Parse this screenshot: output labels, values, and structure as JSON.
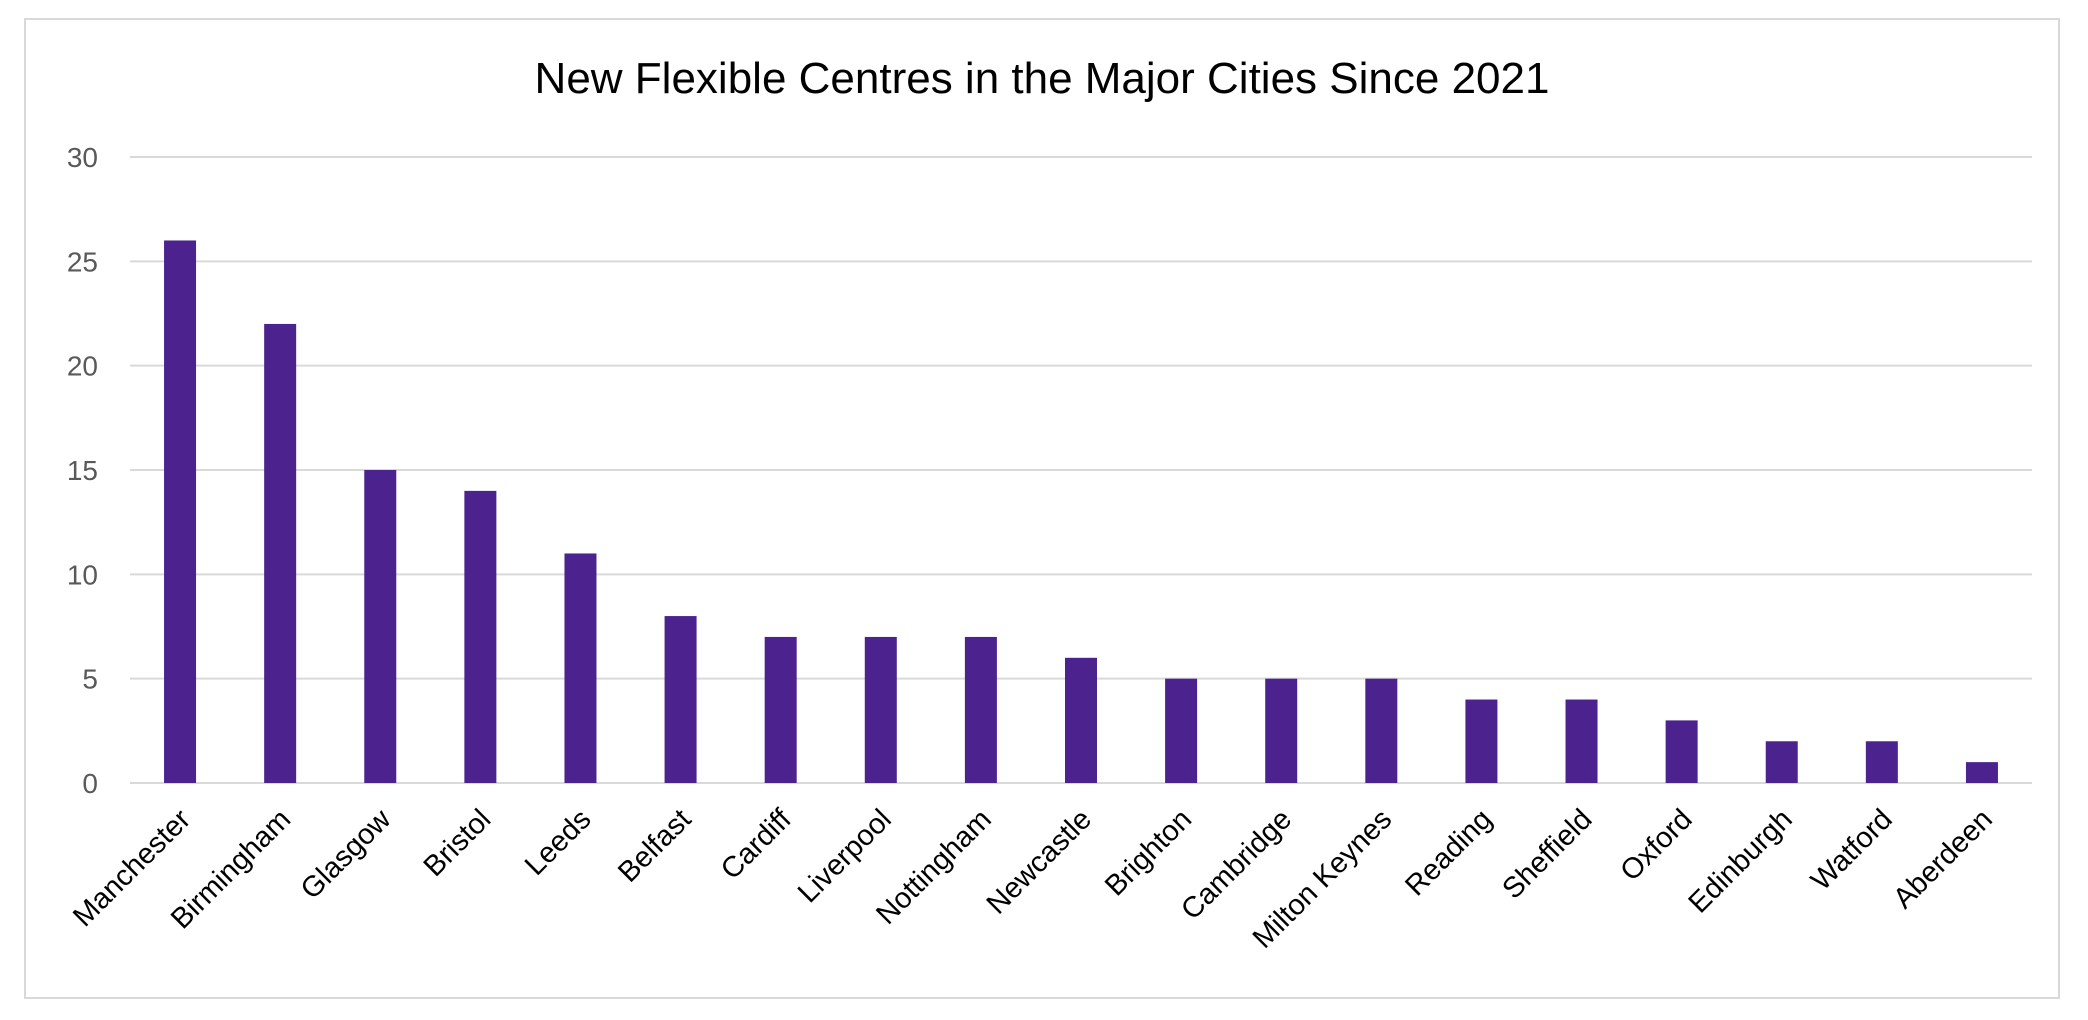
{
  "chart_data": {
    "type": "bar",
    "title": "New Flexible Centres in the Major Cities Since 2021",
    "xlabel": "",
    "ylabel": "",
    "categories": [
      "Manchester",
      "Birmingham",
      "Glasgow",
      "Bristol",
      "Leeds",
      "Belfast",
      "Cardiff",
      "Liverpool",
      "Nottingham",
      "Newcastle",
      "Brighton",
      "Cambridge",
      "Milton Keynes",
      "Reading",
      "Sheffield",
      "Oxford",
      "Edinburgh",
      "Watford",
      "Aberdeen"
    ],
    "values": [
      26,
      22,
      15,
      14,
      11,
      8,
      7,
      7,
      7,
      6,
      5,
      5,
      5,
      4,
      4,
      3,
      2,
      2,
      1
    ],
    "ylim": [
      0,
      30
    ],
    "yticks": [
      "0",
      "5",
      "10",
      "15",
      "20",
      "25",
      "30"
    ],
    "grid": true,
    "legend": "none",
    "bar_color": "#4B228E"
  }
}
